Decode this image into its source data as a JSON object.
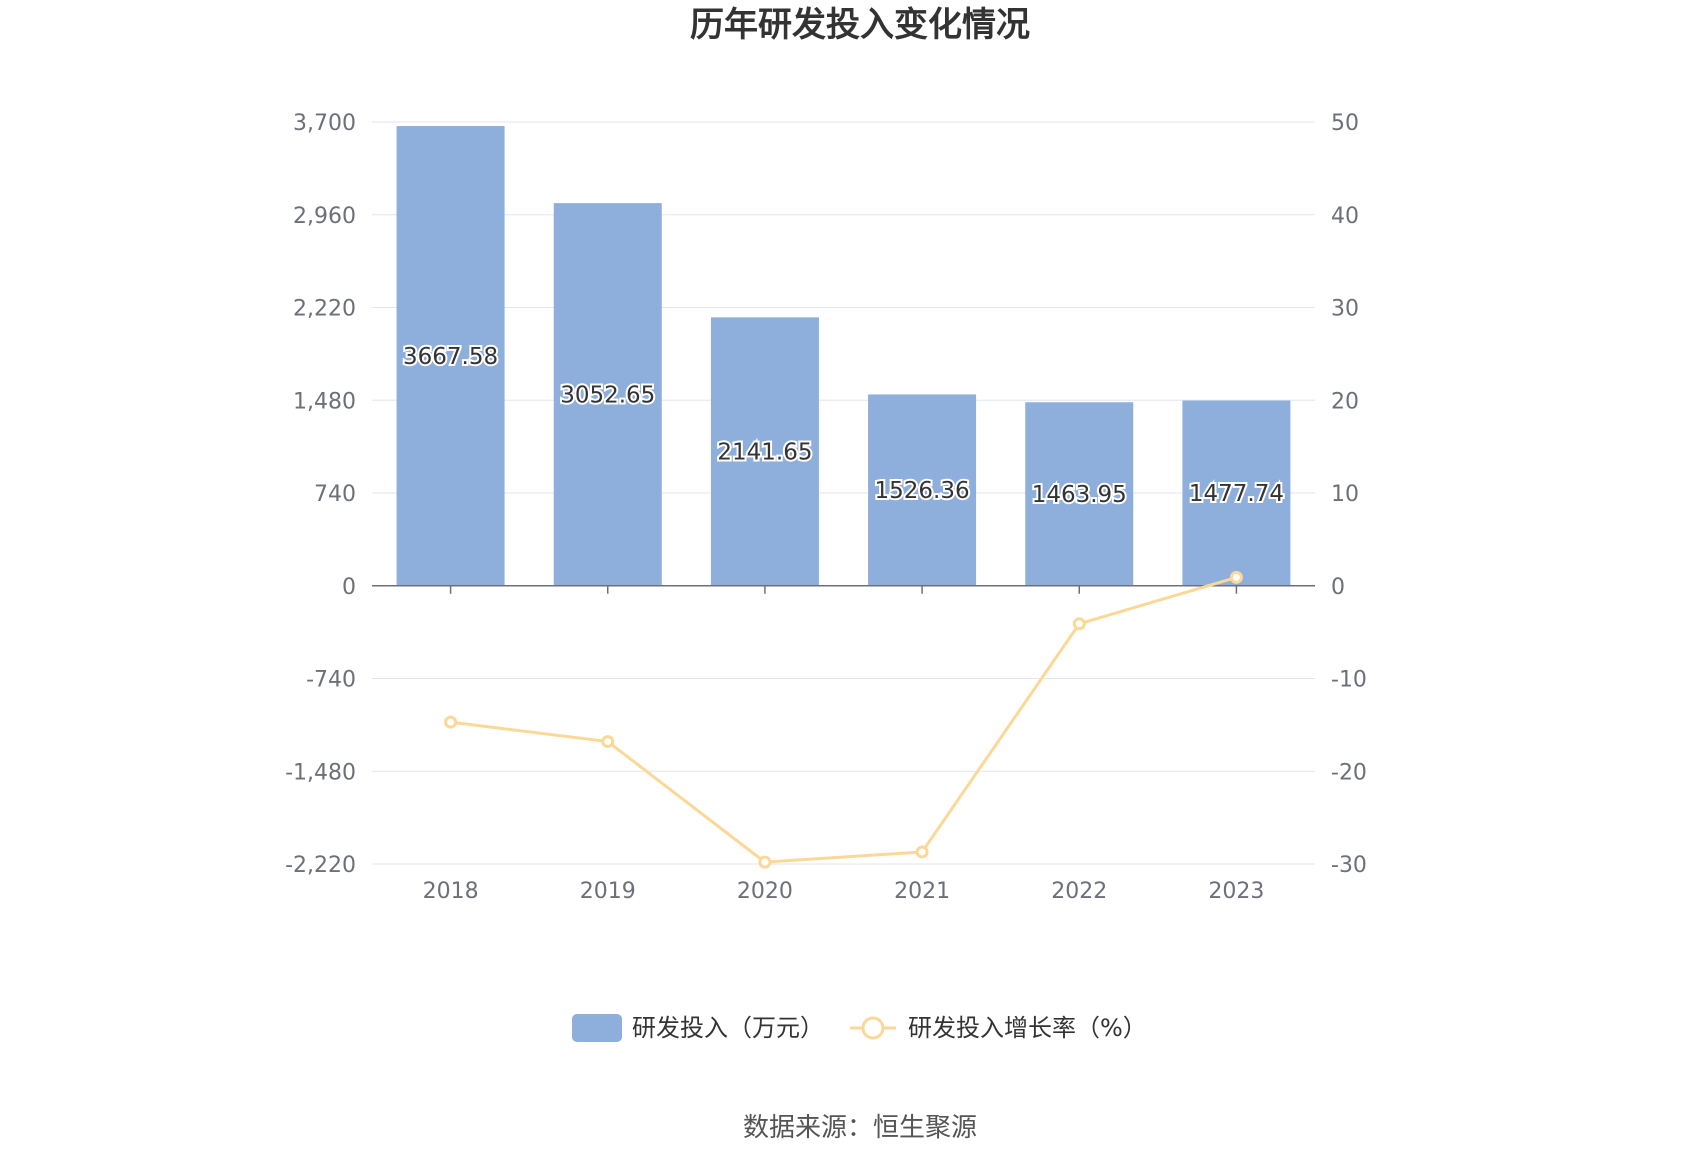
{
  "title": "历年研发投入变化情况",
  "source": "数据来源：恒生聚源",
  "colors": {
    "bar": "#8eaedb",
    "line": "#fbd897",
    "grid": "#e0e6f1",
    "axis": "#6e7079"
  },
  "chart_data": {
    "type": "bar",
    "categories": [
      "2018",
      "2019",
      "2020",
      "2021",
      "2022",
      "2023"
    ],
    "series": [
      {
        "name": "研发投入（万元）",
        "type": "bar",
        "axis": "left",
        "values": [
          3667.58,
          3052.65,
          2141.65,
          1526.36,
          1463.95,
          1477.74
        ],
        "labels": [
          "3667.58",
          "3052.65",
          "2141.65",
          "1526.36",
          "1463.95",
          "1477.74"
        ]
      },
      {
        "name": "研发投入增长率（%）",
        "type": "line",
        "axis": "right",
        "values": [
          -14.7,
          -16.8,
          -29.8,
          -28.7,
          -4.1,
          0.9
        ]
      }
    ],
    "y_left": {
      "min": -2220,
      "max": 3700,
      "ticks": [
        3700,
        2960,
        2220,
        1480,
        740,
        0,
        -740,
        -1480,
        -2220
      ],
      "tick_labels": [
        "3,700",
        "2,960",
        "2,220",
        "1,480",
        "740",
        "0",
        "-740",
        "-1,480",
        "-2,220"
      ]
    },
    "y_right": {
      "min": -30,
      "max": 50,
      "ticks": [
        50,
        40,
        30,
        20,
        10,
        0,
        -10,
        -20,
        -30
      ],
      "tick_labels": [
        "50",
        "40",
        "30",
        "20",
        "10",
        "0",
        "-10",
        "-20",
        "-30"
      ]
    },
    "legend": "bottom",
    "grid": true
  }
}
